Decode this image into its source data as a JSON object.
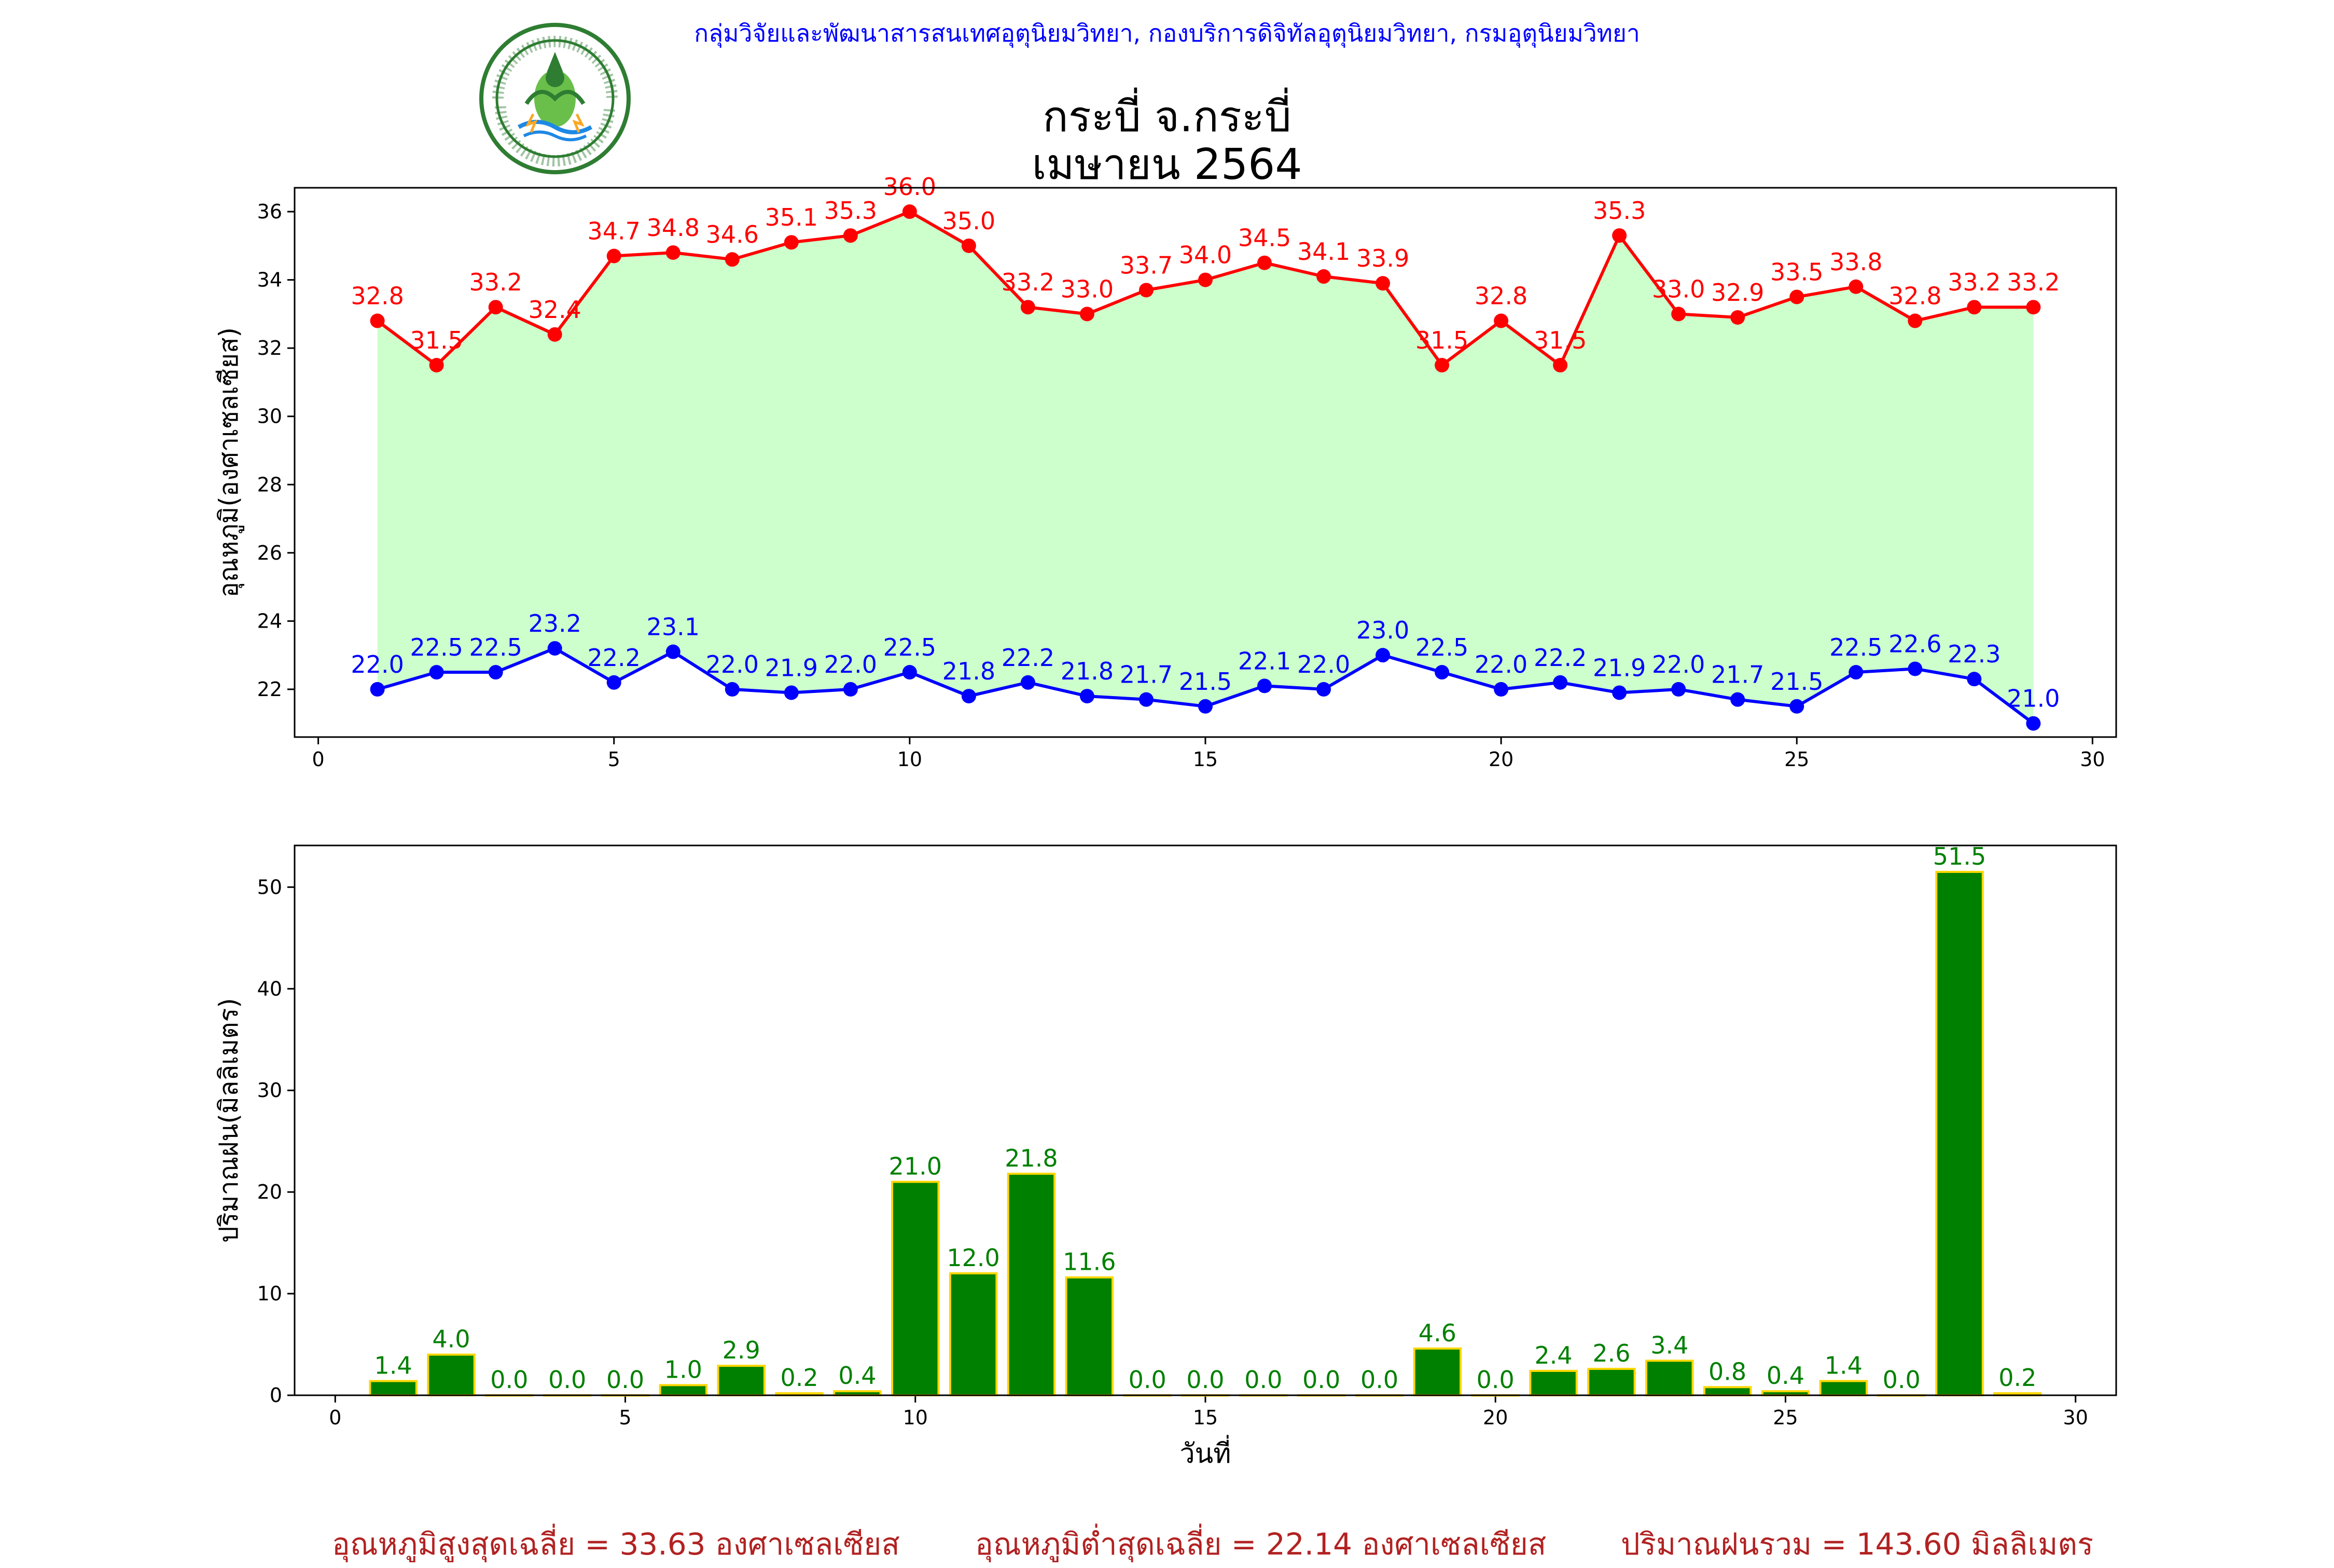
{
  "header": {
    "organization": "กลุ่มวิจัยและพัฒนาสารสนเทศอุตุนิยมวิทยา, กองบริการดิจิทัลอุตุนิยมวิทยา, กรมอุตุนิยมวิทยา",
    "logo_text": "กรมอุตุนิยมวิทยา METEOROLOGICAL DEPARTMENT",
    "title_line1": "กระบี่ จ.กระบี่",
    "title_line2": "เมษายน 2564"
  },
  "summary": {
    "avg_max": "อุณหภูมิสูงสุดเฉลี่ย = 33.63 องศาเซลเซียส",
    "avg_min": "อุณหภูมิต่ำสุดเฉลี่ย = 22.14 องศาเซลเซียส",
    "total_rain": "ปริมาณฝนรวม = 143.60 มิลลิเมตร"
  },
  "colors": {
    "max_line": "#ff0000",
    "min_line": "#0000ff",
    "fill": "#ccffcc",
    "bar_fill": "#008000",
    "bar_edge": "#ffd700",
    "bar_label": "#008000",
    "summary_text": "#b22222",
    "header_text": "#0000ff"
  },
  "chart_data": [
    {
      "type": "line",
      "ylabel": "อุณหภูมิ(องศาเซลเซียส)",
      "xlabel": "",
      "x": [
        1,
        2,
        3,
        4,
        5,
        6,
        7,
        8,
        9,
        10,
        11,
        12,
        13,
        14,
        15,
        16,
        17,
        18,
        19,
        20,
        21,
        22,
        23,
        24,
        25,
        26,
        27,
        28,
        29
      ],
      "xlim": [
        -0.4,
        30.4
      ],
      "ylim": [
        20.6,
        36.7
      ],
      "xticks": [
        0,
        5,
        10,
        15,
        20,
        25,
        30
      ],
      "yticks": [
        22,
        24,
        26,
        28,
        30,
        32,
        34,
        36
      ],
      "series": [
        {
          "values": [
            32.8,
            31.5,
            33.2,
            32.4,
            34.7,
            34.8,
            34.6,
            35.1,
            35.3,
            36.0,
            35.0,
            33.2,
            33.0,
            33.7,
            34.0,
            34.5,
            34.1,
            33.9,
            31.5,
            32.8,
            31.5,
            35.3,
            33.0,
            32.9,
            33.5,
            33.8,
            32.8,
            33.2,
            33.2
          ],
          "labels": [
            "32.8",
            "31.5",
            "33.2",
            "32.4",
            "34.7",
            "34.8",
            "34.6",
            "35.1",
            "35.3",
            "36.0",
            "35.0",
            "33.2",
            "33.0",
            "33.7",
            "34.0",
            "34.5",
            "34.1",
            "33.9",
            "31.5",
            "32.8",
            "31.5",
            "35.3",
            "33.0",
            "32.9",
            "33.5",
            "33.8",
            "32.8",
            "33.2",
            "33.2"
          ]
        },
        {
          "values": [
            22.0,
            22.5,
            22.5,
            23.2,
            22.2,
            23.1,
            22.0,
            21.9,
            22.0,
            22.5,
            21.8,
            22.2,
            21.8,
            21.7,
            21.5,
            22.1,
            22.0,
            23.0,
            22.5,
            22.0,
            22.2,
            21.9,
            22.0,
            21.7,
            21.5,
            22.5,
            22.6,
            22.3,
            21.0
          ],
          "labels": [
            "22.0",
            "22.5",
            "22.5",
            "23.2",
            "22.2",
            "23.1",
            "22.0",
            "21.9",
            "22.0",
            "22.5",
            "21.8",
            "22.2",
            "21.8",
            "21.7",
            "21.5",
            "22.1",
            "22.0",
            "23.0",
            "22.5",
            "22.0",
            "22.2",
            "21.9",
            "22.0",
            "21.7",
            "21.5",
            "22.5",
            "22.6",
            "22.3",
            "21.0"
          ]
        }
      ],
      "grid": false
    },
    {
      "type": "bar",
      "ylabel": "ปริมาณฝน(มิลลิเมตร)",
      "xlabel": "วันที่",
      "x": [
        1,
        2,
        3,
        4,
        5,
        6,
        7,
        8,
        9,
        10,
        11,
        12,
        13,
        14,
        15,
        16,
        17,
        18,
        19,
        20,
        21,
        22,
        23,
        24,
        25,
        26,
        27,
        28,
        29
      ],
      "values": [
        1.4,
        4.0,
        0.0,
        0.0,
        0.0,
        1.0,
        2.9,
        0.2,
        0.4,
        21.0,
        12.0,
        21.8,
        11.6,
        0.0,
        0.0,
        0.0,
        0.0,
        0.0,
        4.6,
        0.0,
        2.4,
        2.6,
        3.4,
        0.8,
        0.4,
        1.4,
        0.0,
        51.5,
        0.2
      ],
      "labels": [
        "1.4",
        "4.0",
        "0.0",
        "0.0",
        "0.0",
        "1.0",
        "2.9",
        "0.2",
        "0.4",
        "21.0",
        "12.0",
        "21.8",
        "11.6",
        "0.0",
        "0.0",
        "0.0",
        "0.0",
        "0.0",
        "4.6",
        "0.0",
        "2.4",
        "2.6",
        "3.4",
        "0.8",
        "0.4",
        "1.4",
        "0.0",
        "51.5",
        "0.2"
      ],
      "xlim": [
        -0.7,
        30.7
      ],
      "ylim": [
        0,
        54.1
      ],
      "xticks": [
        0,
        5,
        10,
        15,
        20,
        25,
        30
      ],
      "yticks": [
        0,
        10,
        20,
        30,
        40,
        50
      ],
      "grid": false
    }
  ]
}
